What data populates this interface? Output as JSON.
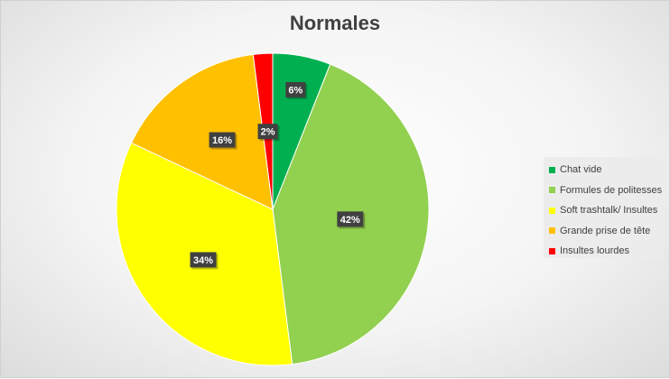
{
  "chart_data": {
    "type": "pie",
    "title": "Normales",
    "categories": [
      "Chat vide",
      "Formules de politesses",
      "Soft trashtalk/ Insultes",
      "Grande prise de tête",
      "Insultes lourdes"
    ],
    "values": [
      6,
      42,
      34,
      16,
      2
    ],
    "value_labels": [
      "6%",
      "42%",
      "34%",
      "16%",
      "2%"
    ],
    "colors": [
      "#00b050",
      "#92d050",
      "#ffff00",
      "#ffc000",
      "#ff0000"
    ],
    "legend_placement": "right",
    "data_label_style": "dark box with white text"
  }
}
